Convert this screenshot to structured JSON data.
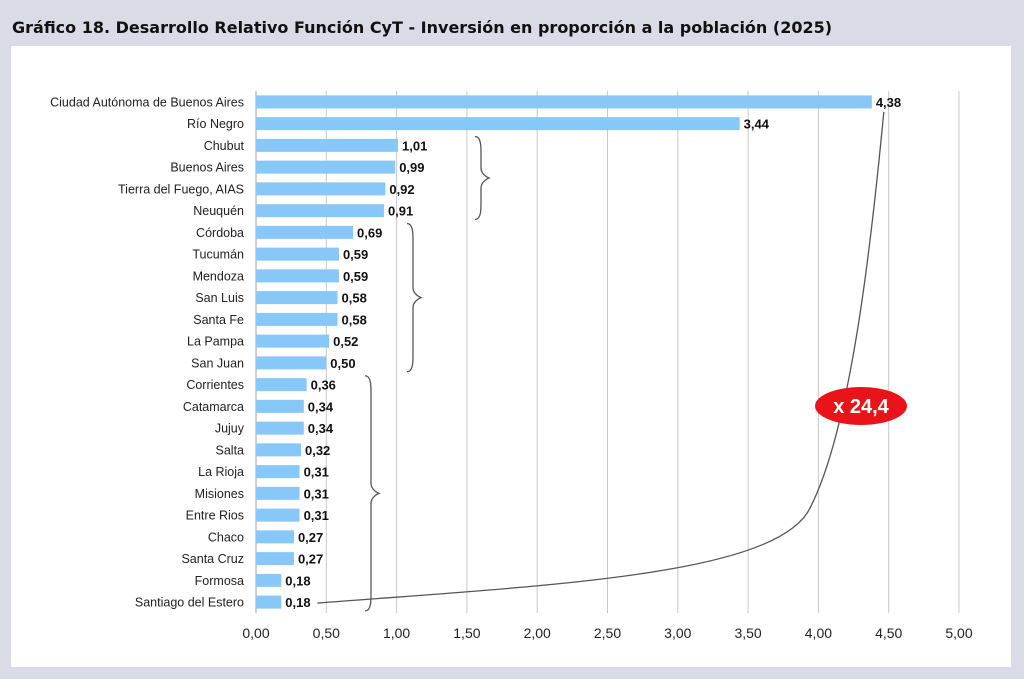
{
  "title": "Gráfico 18. Desarrollo Relativo Función CyT - Inversión en proporción a la población (2025)",
  "chart_data": {
    "type": "bar",
    "orientation": "horizontal",
    "categories": [
      "Ciudad Autónoma de Buenos Aires",
      "Río Negro",
      "Chubut",
      "Buenos Aires",
      "Tierra del Fuego, AIAS",
      "Neuquén",
      "Córdoba",
      "Tucumán",
      "Mendoza",
      "San Luis",
      "Santa Fe",
      "La Pampa",
      "San Juan",
      "Corrientes",
      "Catamarca",
      "Jujuy",
      "Salta",
      "La Rioja",
      "Misiones",
      "Entre Rios",
      "Chaco",
      "Santa Cruz",
      "Formosa",
      "Santiago del Estero"
    ],
    "values": [
      4.38,
      3.44,
      1.01,
      0.99,
      0.92,
      0.91,
      0.69,
      0.59,
      0.59,
      0.58,
      0.58,
      0.52,
      0.5,
      0.36,
      0.34,
      0.34,
      0.32,
      0.31,
      0.31,
      0.31,
      0.27,
      0.27,
      0.18,
      0.18
    ],
    "value_labels": [
      "4,38",
      "3,44",
      "1,01",
      "0,99",
      "0,92",
      "0,91",
      "0,69",
      "0,59",
      "0,59",
      "0,58",
      "0,58",
      "0,52",
      "0,50",
      "0,36",
      "0,34",
      "0,34",
      "0,32",
      "0,31",
      "0,31",
      "0,31",
      "0,27",
      "0,27",
      "0,18",
      "0,18"
    ],
    "xlim": [
      0,
      5
    ],
    "x_ticks": [
      0,
      0.5,
      1,
      1.5,
      2,
      2.5,
      3,
      3.5,
      4,
      4.5,
      5
    ],
    "x_tick_labels": [
      "0,00",
      "0,50",
      "1,00",
      "1,50",
      "2,00",
      "2,50",
      "3,00",
      "3,50",
      "4,00",
      "4,50",
      "5,00"
    ],
    "grid": "vertical",
    "bar_color": "#87c8f8",
    "brace_groups": [
      {
        "from": "Chubut",
        "to": "Neuquén"
      },
      {
        "from": "Córdoba",
        "to": "San Juan"
      },
      {
        "from": "Corrientes",
        "to": "Santiago del Estero"
      }
    ],
    "annotation": {
      "text": "x 24,4",
      "color": "#e8141a",
      "connects": [
        "Santiago del Estero",
        "Ciudad Autónoma de Buenos Aires"
      ]
    },
    "xlabel": "",
    "ylabel": ""
  }
}
